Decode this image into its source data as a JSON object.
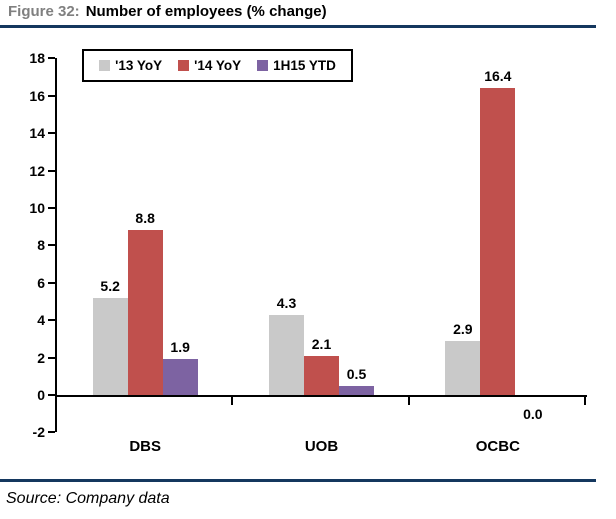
{
  "header": {
    "figure_label": "Figure 32:",
    "title": "Number of employees (% change)"
  },
  "footer": {
    "source": "Source: Company data"
  },
  "colors": {
    "rule": "#14375e",
    "figure_label_gray": "#808080",
    "axis_black": "#000000"
  },
  "chart_data": {
    "type": "bar",
    "title": "Number of employees (% change)",
    "categories": [
      "DBS",
      "UOB",
      "OCBC"
    ],
    "series": [
      {
        "name": "'13 YoY",
        "color": "#c9c9c9",
        "values": [
          5.2,
          4.3,
          2.9
        ]
      },
      {
        "name": "'14 YoY",
        "color": "#c0504d",
        "values": [
          8.8,
          2.1,
          16.4
        ]
      },
      {
        "name": "1H15 YTD",
        "color": "#7d63a2",
        "values": [
          1.9,
          0.5,
          0.0
        ]
      }
    ],
    "ylim": [
      -2,
      18
    ],
    "ytick_step": 2,
    "grid": false,
    "legend_position": "top-left",
    "data_labels": true,
    "data_label_decimals": 1
  }
}
